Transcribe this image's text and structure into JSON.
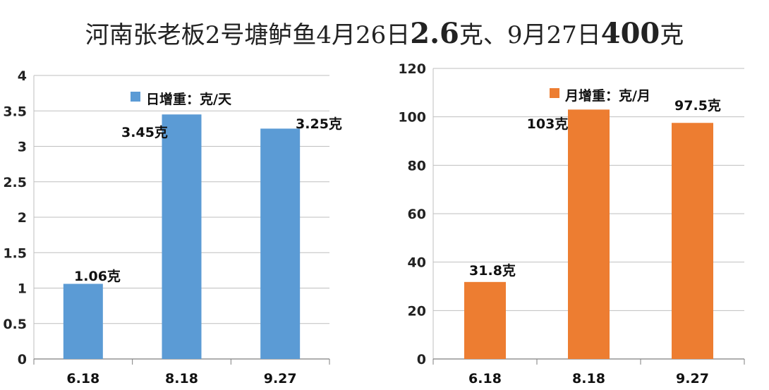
{
  "title": {
    "segments": [
      {
        "text": "河南张老板2号塘鲈鱼4月26日",
        "big": false
      },
      {
        "text": "2.6",
        "big": true
      },
      {
        "text": "克、9月27日",
        "big": false
      },
      {
        "text": "400",
        "big": true
      },
      {
        "text": "克",
        "big": false
      }
    ]
  },
  "chart_data": [
    {
      "type": "bar",
      "categories": [
        "6.18",
        "8.18",
        "9.27"
      ],
      "series": [
        {
          "name": "日增重：克/天",
          "values": [
            1.06,
            3.45,
            3.25
          ],
          "color": "#5b9bd5"
        }
      ],
      "data_labels": [
        "1.06克",
        "3.45克",
        "3.25克"
      ],
      "ylim": [
        0,
        4
      ],
      "yticks": [
        0,
        0.5,
        1,
        1.5,
        2,
        2.5,
        3,
        3.5,
        4
      ],
      "ytick_labels": [
        "0",
        "0.5",
        "1",
        "1.5",
        "2",
        "2.5",
        "3",
        "3.5",
        "4"
      ],
      "grid": true,
      "legend": "top-center"
    },
    {
      "type": "bar",
      "categories": [
        "6.18",
        "8.18",
        "9.27"
      ],
      "series": [
        {
          "name": "月增重：克/月",
          "values": [
            31.8,
            103,
            97.5
          ],
          "color": "#ed7d31"
        }
      ],
      "data_labels": [
        "31.8克",
        "103克",
        "97.5克"
      ],
      "ylim": [
        0,
        120
      ],
      "yticks": [
        0,
        20,
        40,
        60,
        80,
        100,
        120
      ],
      "ytick_labels": [
        "0",
        "20",
        "40",
        "60",
        "80",
        "100",
        "120"
      ],
      "grid": true,
      "legend": "top-right"
    }
  ]
}
